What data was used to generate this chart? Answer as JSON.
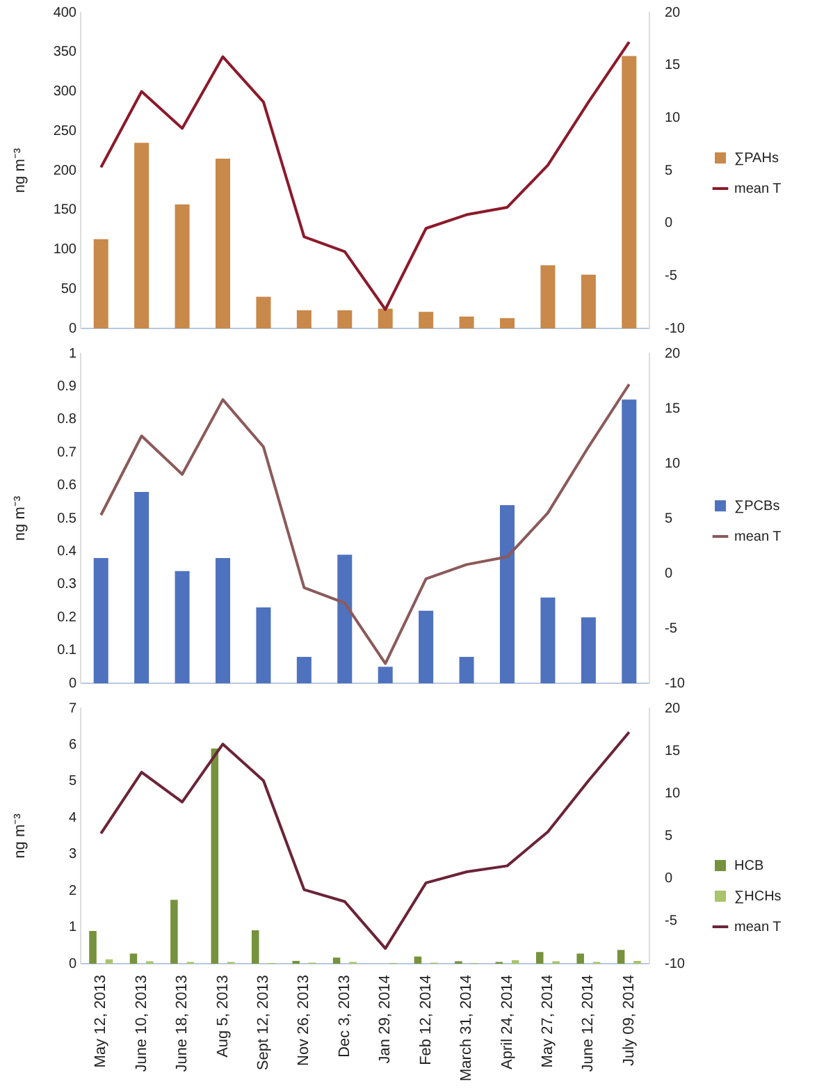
{
  "chart_data": [
    {
      "type": "bar",
      "categories": [
        null,
        null,
        null,
        null,
        null,
        null,
        null,
        null,
        null,
        null,
        null,
        null,
        null,
        null
      ],
      "ylabel": "ng m⁻³",
      "ylim": [
        0,
        400
      ],
      "yticks": [
        0,
        50,
        100,
        150,
        200,
        250,
        300,
        350,
        400
      ],
      "y2lim": [
        -10,
        20
      ],
      "y2ticks": [
        -10,
        -5,
        0,
        5,
        10,
        15,
        20
      ],
      "legend": "right",
      "grid": false,
      "tick_labels": "y",
      "series": [
        {
          "name": "∑PAHs",
          "color": "#c8894a",
          "values": [
            113,
            235,
            157,
            215,
            40,
            23,
            23,
            25,
            21,
            15,
            13,
            80,
            68,
            345
          ]
        },
        {
          "name": "mean T",
          "type": "line",
          "axis": "y2",
          "color": "#8b1a2b",
          "values": [
            5.3,
            12.5,
            9,
            15.8,
            11.5,
            -1.3,
            -2.7,
            -8.2,
            -0.5,
            0.8,
            1.5,
            5.5,
            11.5,
            17.2
          ]
        }
      ]
    },
    {
      "type": "bar",
      "categories": [
        null,
        null,
        null,
        null,
        null,
        null,
        null,
        null,
        null,
        null,
        null,
        null,
        null,
        null
      ],
      "ylabel": "ng m⁻³",
      "ylim": [
        0,
        1
      ],
      "yticks": [
        0,
        0.1,
        0.2,
        0.3,
        0.4,
        0.5,
        0.6,
        0.7,
        0.8,
        0.9,
        1
      ],
      "y2lim": [
        -10,
        20
      ],
      "y2ticks": [
        -10,
        -5,
        0,
        5,
        10,
        15,
        20
      ],
      "legend": "right",
      "grid": false,
      "tick_labels": "y",
      "series": [
        {
          "name": "∑PCBs",
          "color": "#4f72be",
          "values": [
            0.38,
            0.58,
            0.34,
            0.38,
            0.23,
            0.08,
            0.39,
            0.05,
            0.22,
            0.08,
            0.54,
            0.26,
            0.2,
            0.86
          ]
        },
        {
          "name": "mean T",
          "type": "line",
          "axis": "y2",
          "color": "#8b5a5a",
          "values": [
            5.3,
            12.5,
            9,
            15.8,
            11.5,
            -1.3,
            -2.7,
            -8.2,
            -0.5,
            0.8,
            1.5,
            5.5,
            11.5,
            17.2
          ]
        }
      ]
    },
    {
      "type": "bar",
      "categories": [
        "May 12, 2013",
        "June 10, 2013",
        "June 18, 2013",
        "Aug 5, 2013",
        "Sept 12, 2013",
        "Nov 26, 2013",
        "Dec 3, 2013",
        "Jan 29, 2014",
        "Feb 12, 2014",
        "March 31, 2014",
        "April 24, 2014",
        "May 27, 2014",
        "June 12, 2014",
        "July 09, 2014"
      ],
      "ylabel": "ng m⁻³",
      "ylim": [
        0,
        7
      ],
      "yticks": [
        0,
        1,
        2,
        3,
        4,
        5,
        6,
        7
      ],
      "y2lim": [
        -10,
        20
      ],
      "y2ticks": [
        -10,
        -5,
        0,
        5,
        10,
        15,
        20
      ],
      "legend": "right",
      "grid": false,
      "series": [
        {
          "name": "HCB",
          "color": "#76923c",
          "values": [
            0.9,
            0.28,
            1.75,
            5.9,
            0.92,
            0.08,
            0.17,
            0.0,
            0.2,
            0.07,
            0.05,
            0.32,
            0.28,
            0.38
          ]
        },
        {
          "name": "∑HCHs",
          "color": "#a9c46a",
          "values": [
            0.12,
            0.07,
            0.05,
            0.05,
            0.02,
            0.03,
            0.05,
            0.02,
            0.03,
            0.02,
            0.1,
            0.07,
            0.05,
            0.08
          ]
        },
        {
          "name": "mean T",
          "type": "line",
          "axis": "y2",
          "color": "#6b2438",
          "values": [
            5.3,
            12.5,
            9,
            15.8,
            11.5,
            -1.3,
            -2.7,
            -8.2,
            -0.5,
            0.8,
            1.5,
            5.5,
            11.5,
            17.2
          ]
        }
      ]
    }
  ]
}
